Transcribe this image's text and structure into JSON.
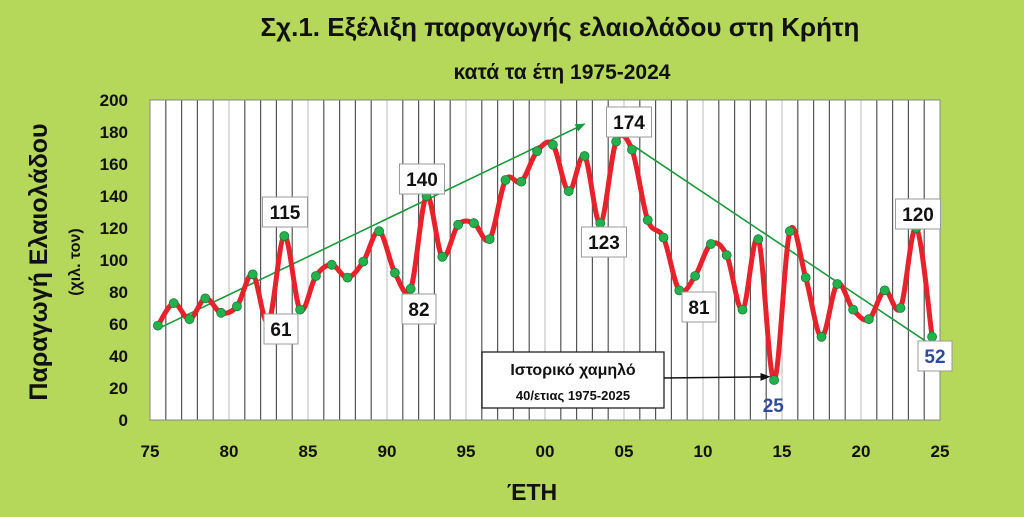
{
  "chart_data": {
    "type": "line",
    "title": "Σχ.1. Εξέλιξη παραγωγής ελαιολάδου στη Κρήτη",
    "subtitle": "κατά τα έτη 1975-2024",
    "xlabel": "ΈΤΗ",
    "ylabel": "Παραγωγή Ελαιολάδου",
    "ylabel_unit": "(χιλ. τον)",
    "ylim": [
      0,
      200
    ],
    "xlim": [
      1975,
      2025
    ],
    "y_ticks": [
      "0",
      "20",
      "40",
      "60",
      "80",
      "100",
      "120",
      "140",
      "160",
      "180",
      "200"
    ],
    "x_ticks": [
      "75",
      "80",
      "85",
      "90",
      "95",
      "00",
      "05",
      "10",
      "15",
      "20",
      "25"
    ],
    "grid": "vertical",
    "series": [
      {
        "x": [
          1975.5,
          1976.5,
          1977.5,
          1978.5,
          1979.5,
          1980.5,
          1981.5,
          1982.5,
          1983.5,
          1984.5,
          1985.5,
          1986.5,
          1987.5,
          1988.5,
          1989.5,
          1990.5,
          1991.5,
          1992.5,
          1993.5,
          1994.5,
          1995.5,
          1996.5,
          1997.5,
          1998.5,
          1999.5,
          2000.5,
          2001.5,
          2002.5,
          2003.5,
          2004.5,
          2005.5,
          2006.5,
          2007.5,
          2008.5,
          2009.5,
          2010.5,
          2011.5,
          2012.5,
          2013.5,
          2014.5,
          2015.5,
          2016.5,
          2017.5,
          2018.5,
          2019.5,
          2020.5,
          2021.5,
          2022.5,
          2023.5,
          2024.5
        ],
        "values": [
          59,
          73,
          63,
          76,
          67,
          71,
          91,
          61,
          115,
          69,
          90,
          97,
          89,
          99,
          118,
          92,
          82,
          140,
          102,
          122,
          123,
          113,
          150,
          149,
          168,
          172,
          143,
          165,
          123,
          174,
          169,
          125,
          114,
          81,
          90,
          110,
          103,
          69,
          113,
          25,
          118,
          89,
          52,
          85,
          69,
          63,
          81,
          70,
          120,
          52
        ]
      }
    ],
    "data_labels": [
      {
        "text": "115",
        "value": 115,
        "color": "#111111"
      },
      {
        "text": "61",
        "value": 61,
        "color": "#111111"
      },
      {
        "text": "140",
        "value": 140,
        "color": "#111111"
      },
      {
        "text": "82",
        "value": 82,
        "color": "#111111"
      },
      {
        "text": "174",
        "value": 174,
        "color": "#111111"
      },
      {
        "text": "123",
        "value": 123,
        "color": "#111111"
      },
      {
        "text": "81",
        "value": 81,
        "color": "#111111"
      },
      {
        "text": "120",
        "value": 120,
        "color": "#111111"
      },
      {
        "text": "52",
        "value": 52,
        "color": "#2f4b9a"
      },
      {
        "text": "25",
        "value": 25,
        "color": "#2f4b9a"
      }
    ],
    "trend_lines": [
      {
        "from": [
          1975.5,
          57
        ],
        "to": [
          2002.5,
          185
        ]
      },
      {
        "from": [
          2005.5,
          172
        ],
        "to": [
          2025.5,
          40
        ]
      }
    ],
    "annotation": {
      "title": "Ιστορικό χαμηλό",
      "subtitle": "40/ετιας 1975-2025",
      "points_to": [
        2014.2,
        27
      ]
    },
    "colors": {
      "background": "#b5d75a",
      "plot_area": "#ffffff",
      "line": "#e8222b",
      "markers": "#22b14c",
      "trend": "#1a9a3c",
      "axis_text": "#111111",
      "label_blue": "#2f4b9a"
    }
  }
}
